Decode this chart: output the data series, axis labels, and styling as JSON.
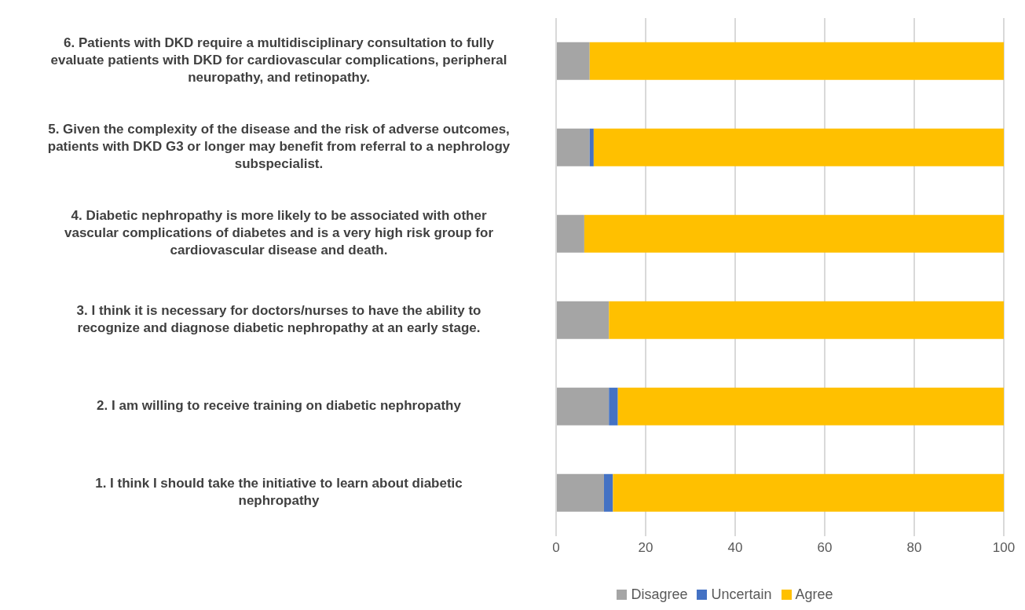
{
  "chart_data": {
    "type": "bar",
    "orientation": "horizontal",
    "stacked": true,
    "categories": [
      "6. Patients with DKD require a multidisciplinary consultation to fully evaluate patients with DKD for cardiovascular complications, peripheral neuropathy, and retinopathy.",
      "5. Given the complexity of the disease and the risk of adverse outcomes, patients with DKD G3 or longer may benefit from referral to a nephrology subspecialist.",
      "4. Diabetic nephropathy is more likely to be associated with other vascular complications of diabetes and is a very high risk group for cardiovascular disease and death.",
      "3. I think it is necessary for doctors/nurses to have the ability to recognize and diagnose diabetic nephropathy at an early stage.",
      "2. I am willing to receive training on diabetic nephropathy",
      "1. I think I should take the initiative to learn about diabetic nephropathy"
    ],
    "series": [
      {
        "name": "Disagree",
        "color": "#a5a5a5",
        "values": [
          7.5,
          7.5,
          6.3,
          11.8,
          11.8,
          10.7
        ]
      },
      {
        "name": "Uncertain",
        "color": "#4472c4",
        "values": [
          0,
          0.9,
          0,
          0,
          2.0,
          2.0
        ]
      },
      {
        "name": "Agree",
        "color": "#ffc000",
        "values": [
          92.5,
          91.6,
          93.7,
          88.2,
          86.2,
          87.3
        ]
      }
    ],
    "xlim": [
      0,
      100
    ],
    "xticks": [
      0,
      20,
      40,
      60,
      80,
      100
    ],
    "grid": "x",
    "legend": "bottom"
  }
}
